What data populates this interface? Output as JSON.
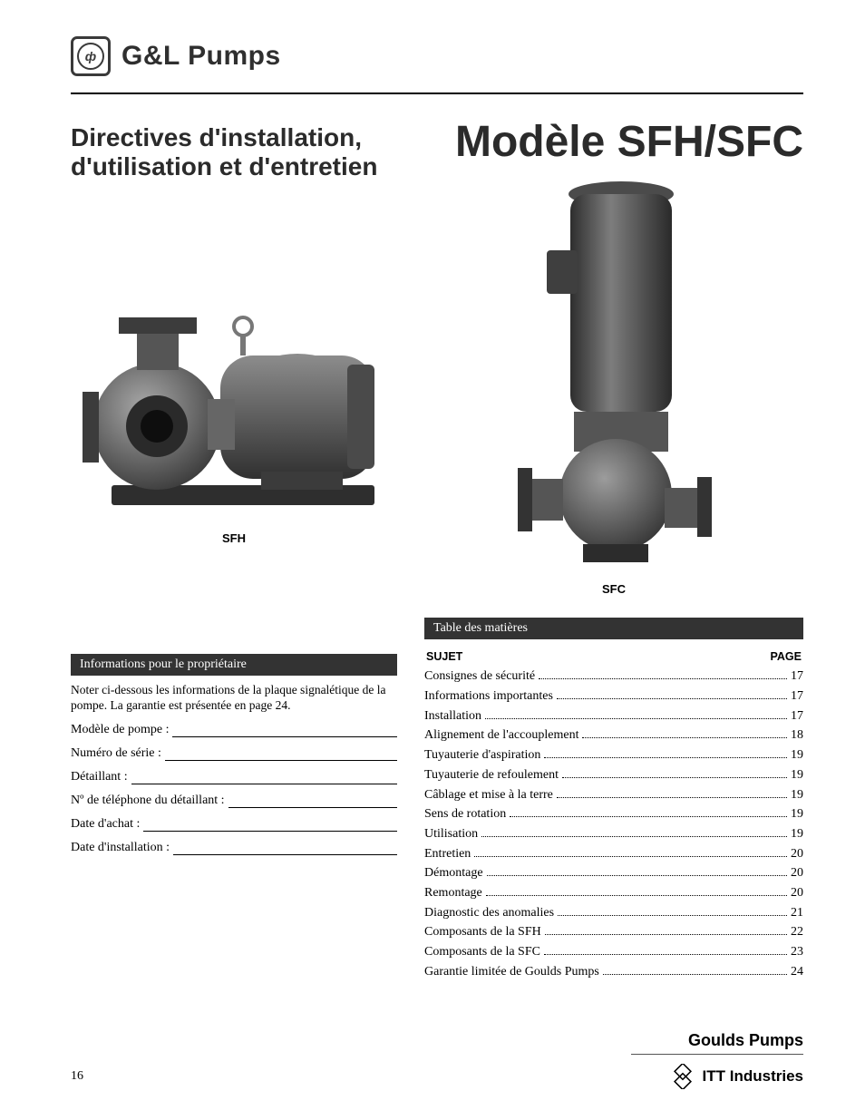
{
  "brand": {
    "logo_text": "G&L Pumps",
    "logo_glyph": "ф"
  },
  "header": {
    "subtitle": "Directives d'installation, d'utilisation et d'entretien",
    "title": "Modèle SFH/SFC"
  },
  "captions": {
    "sfh": "SFH",
    "sfc": "SFC"
  },
  "owner": {
    "panel_title": "Informations pour le propriétaire",
    "note": "Noter ci-dessous les informations de la plaque signalétique de la pompe. La garantie est présentée en page 24.",
    "fields": [
      "Modèle de pompe :",
      "Numéro de série :",
      "Détaillant :",
      "Nº de téléphone du détaillant :",
      "Date d'achat :",
      "Date d'installation :"
    ]
  },
  "toc": {
    "panel_title": "Table des matières",
    "col_subject": "SUJET",
    "col_page": "PAGE",
    "rows": [
      {
        "subject": "Consignes de sécurité",
        "page": "17"
      },
      {
        "subject": "Informations importantes",
        "page": "17"
      },
      {
        "subject": "Installation",
        "page": "17"
      },
      {
        "subject": "Alignement de l'accouplement",
        "page": "18"
      },
      {
        "subject": "Tuyauterie d'aspiration",
        "page": "19"
      },
      {
        "subject": "Tuyauterie de refoulement",
        "page": "19"
      },
      {
        "subject": "Câblage et mise à la terre",
        "page": "19"
      },
      {
        "subject": "Sens de rotation",
        "page": "19"
      },
      {
        "subject": "Utilisation",
        "page": "19"
      },
      {
        "subject": "Entretien",
        "page": "20"
      },
      {
        "subject": "Démontage",
        "page": "20"
      },
      {
        "subject": "Remontage",
        "page": "20"
      },
      {
        "subject": "Diagnostic des anomalies",
        "page": "21"
      },
      {
        "subject": "Composants de la SFH",
        "page": "22"
      },
      {
        "subject": "Composants de la SFC",
        "page": "23"
      },
      {
        "subject": "Garantie limitée de Goulds Pumps",
        "page": "24"
      }
    ]
  },
  "footer": {
    "goulds": "Goulds Pumps",
    "itt": "ITT Industries"
  },
  "page_number": "16",
  "style": {
    "pump_fill": "#6b6b6b",
    "pump_dark": "#3d3d3d",
    "pump_light": "#9a9a9a",
    "panel_bg": "#333333",
    "rule_color": "#000000"
  }
}
